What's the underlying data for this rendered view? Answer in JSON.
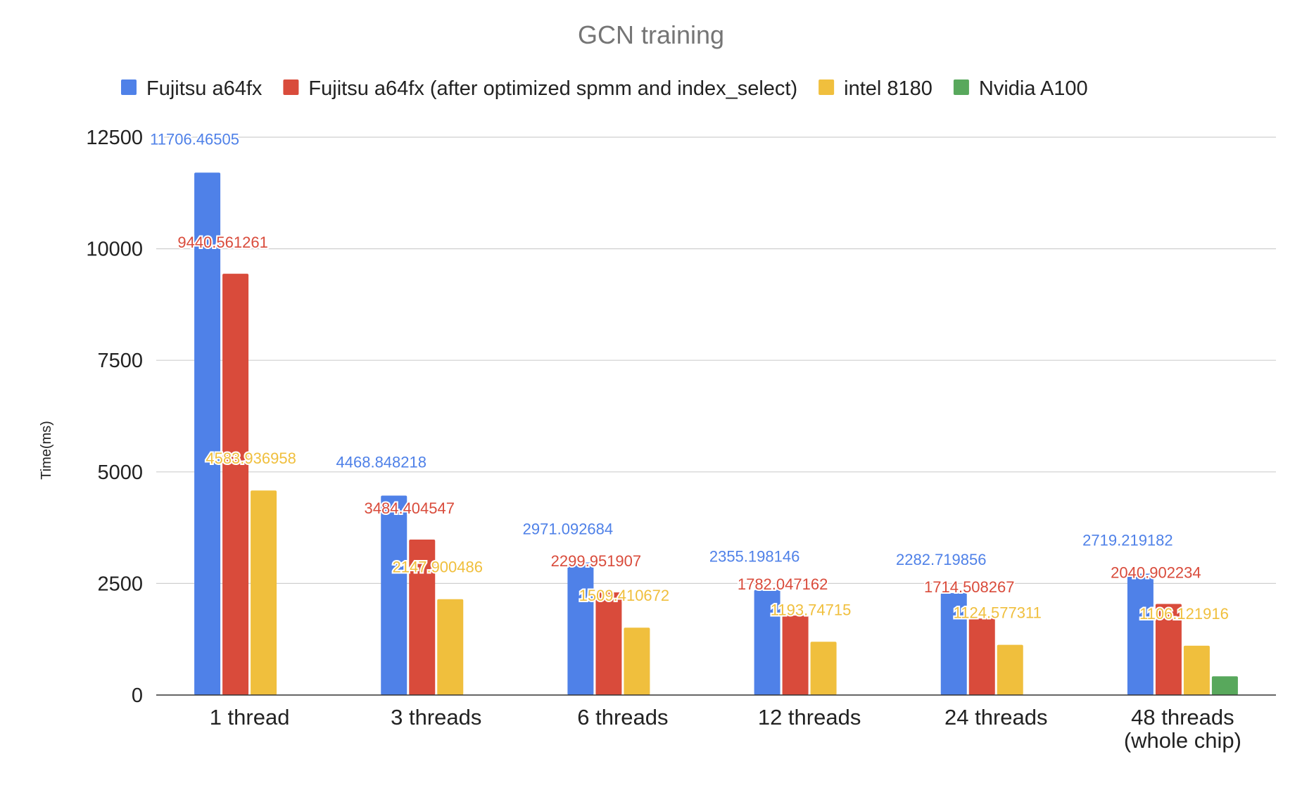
{
  "chart_data": {
    "type": "bar",
    "title": "GCN training",
    "xlabel": "",
    "ylabel": "Time(ms)",
    "ylim": [
      0,
      12500
    ],
    "yticks": [
      "0",
      "2500",
      "5000",
      "7500",
      "10000",
      "12500"
    ],
    "grid": true,
    "legend_position": "top",
    "categories": [
      "1 thread",
      "3 threads",
      "6 threads",
      "12 threads",
      "24 threads",
      "48 threads (whole chip)"
    ],
    "category_lines": [
      [
        "1 thread"
      ],
      [
        "3 threads"
      ],
      [
        "6 threads"
      ],
      [
        "12 threads"
      ],
      [
        "24 threads"
      ],
      [
        "48 threads",
        "(whole chip)"
      ]
    ],
    "series": [
      {
        "name": "Fujitsu a64fx",
        "color": "#4f81e8",
        "values": [
          11706.46505,
          4468.848218,
          2971.092684,
          2355.198146,
          2282.719856,
          2719.219182
        ],
        "labels": [
          "11706.46505",
          "4468.848218",
          "2971.092684",
          "2355.198146",
          "2282.719856",
          "2719.219182"
        ]
      },
      {
        "name": "Fujitsu a64fx (after optimized spmm and index_select)",
        "color": "#d94b3b",
        "values": [
          9440.561261,
          3484.404547,
          2299.951907,
          1782.047162,
          1714.508267,
          2040.902234
        ],
        "labels": [
          "9440.561261",
          "3484.404547",
          "2299.951907",
          "1782.047162",
          "1714.508267",
          "2040.902234"
        ]
      },
      {
        "name": "intel 8180",
        "color": "#f0bf3d",
        "values": [
          4583.936958,
          2147.900486,
          1509.410672,
          1193.74715,
          1124.577311,
          1106.121916
        ],
        "labels": [
          "4583.936958",
          "2147.900486",
          "1509.410672",
          "1193.74715",
          "1124.577311",
          "1106.121916"
        ]
      },
      {
        "name": "Nvidia A100",
        "color": "#58a85c",
        "values": [
          null,
          null,
          null,
          null,
          null,
          420
        ],
        "labels": [
          "",
          "",
          "",
          "",
          "",
          ""
        ]
      }
    ]
  }
}
